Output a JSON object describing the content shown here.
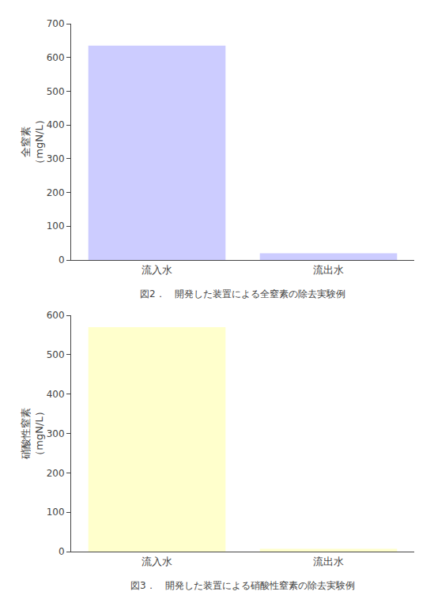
{
  "chart_data": [
    {
      "type": "bar",
      "title": "図2．　開発した装置による全窒素の除去実験例",
      "ylabel": "全窒素\n（mgN/L）",
      "categories": [
        "流入水",
        "流出水"
      ],
      "values": [
        635,
        20
      ],
      "color": "#ccccff",
      "ylim": [
        0,
        700
      ],
      "yticks": [
        0,
        100,
        200,
        300,
        400,
        500,
        600,
        700
      ],
      "grid": false
    },
    {
      "type": "bar",
      "title": "図3．　開発した装置による硝酸性窒素の除去実験例",
      "ylabel": "硝酸性窒素\n（mgN/L）",
      "categories": [
        "流入水",
        "流出水"
      ],
      "values": [
        570,
        7
      ],
      "color": "#ffffcc",
      "ylim": [
        0,
        600
      ],
      "yticks": [
        0,
        100,
        200,
        300,
        400,
        500,
        600
      ],
      "grid": false
    }
  ]
}
